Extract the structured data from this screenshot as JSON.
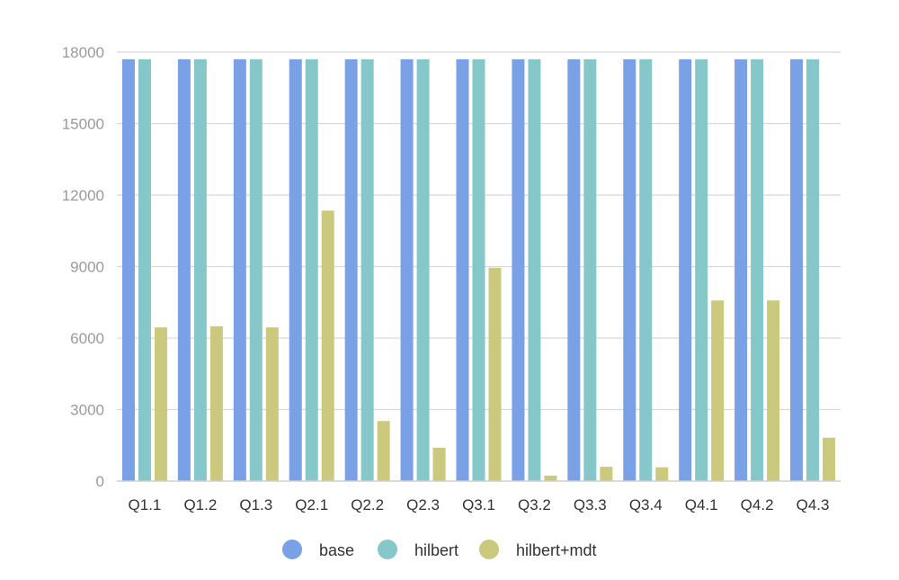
{
  "chart_data": {
    "type": "bar",
    "categories": [
      "Q1.1",
      "Q1.2",
      "Q1.3",
      "Q2.1",
      "Q2.2",
      "Q2.3",
      "Q3.1",
      "Q3.2",
      "Q3.3",
      "Q3.4",
      "Q4.1",
      "Q4.2",
      "Q4.3"
    ],
    "series": [
      {
        "name": "base",
        "color": "#7aa0e6",
        "values": [
          17700,
          17700,
          17700,
          17700,
          17700,
          17700,
          17700,
          17700,
          17700,
          17700,
          17700,
          17700,
          17700
        ]
      },
      {
        "name": "hilbert",
        "color": "#86c7c9",
        "values": [
          17700,
          17700,
          17700,
          17700,
          17700,
          17700,
          17700,
          17700,
          17700,
          17700,
          17700,
          17700,
          17700
        ]
      },
      {
        "name": "hilbert+mdt",
        "color": "#cbc97e",
        "values": [
          6450,
          6500,
          6450,
          11350,
          2520,
          1400,
          8950,
          230,
          600,
          580,
          7580,
          7580,
          1820
        ]
      }
    ],
    "title": "",
    "xlabel": "",
    "ylabel": "",
    "ylim": [
      0,
      18000
    ],
    "yticks": [
      0,
      3000,
      6000,
      9000,
      12000,
      15000,
      18000
    ],
    "grid": true,
    "legend_position": "bottom-center"
  }
}
